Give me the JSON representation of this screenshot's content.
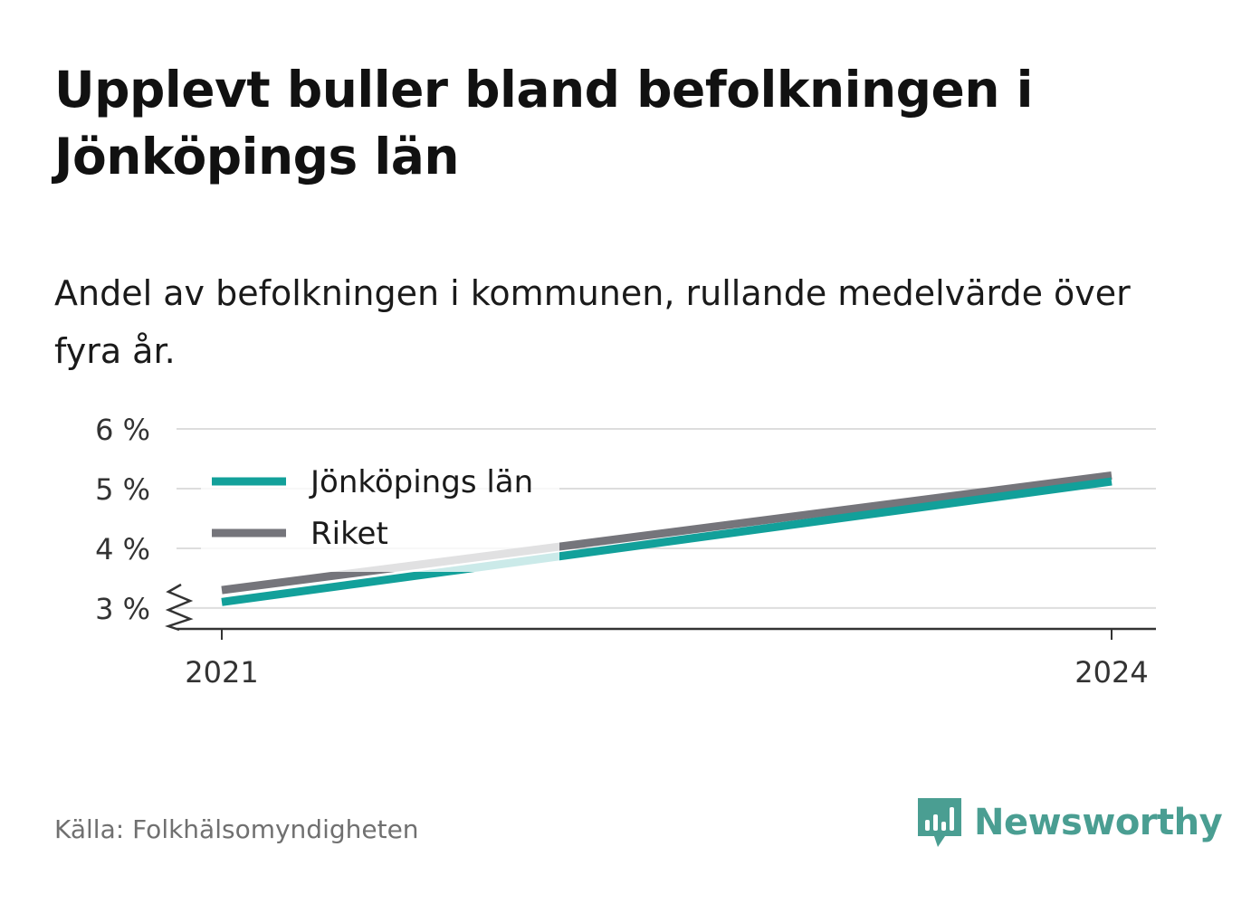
{
  "title": "Upplevt buller bland befolkningen i Jönköpings län",
  "subtitle": "Andel av befolkningen i kommunen, rullande medelvärde över fyra år.",
  "source": "Källa: Folkhälsomyndigheten",
  "brand": {
    "name": "Newsworthy",
    "icon": "newsworthy-logo-icon",
    "color": "#4a9e92"
  },
  "chart_data": {
    "type": "line",
    "x": [
      2021,
      2024
    ],
    "x_tick_labels": [
      "2021",
      "2024"
    ],
    "y_ticks": [
      3,
      4,
      5,
      6
    ],
    "y_tick_labels": [
      "3 %",
      "4 %",
      "5 %",
      "6 %"
    ],
    "ylim": [
      2.65,
      6
    ],
    "y_axis_break": true,
    "grid": true,
    "legend_position": "top-left",
    "series": [
      {
        "name": "Jönköpings län",
        "color": "#12a09a",
        "values": [
          3.1,
          5.12
        ]
      },
      {
        "name": "Riket",
        "color": "#75757b",
        "values": [
          3.3,
          5.22
        ]
      }
    ]
  }
}
